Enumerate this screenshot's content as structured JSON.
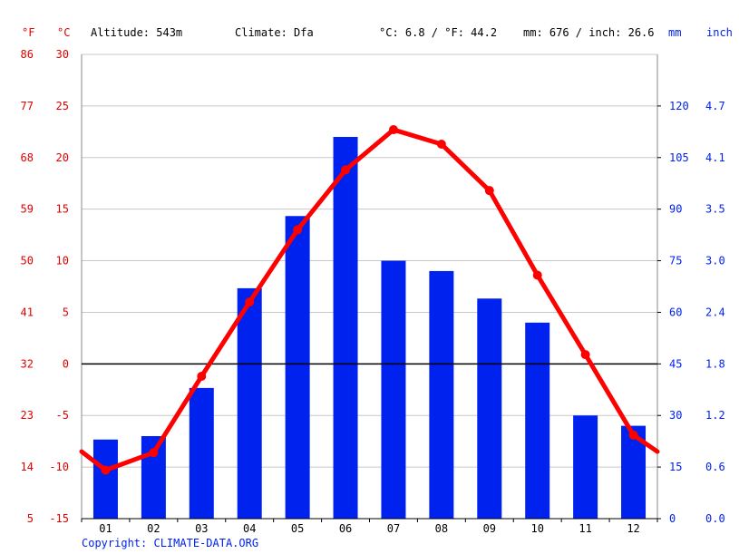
{
  "header": {
    "left_unit_f": "°F",
    "left_unit_c": "°C",
    "altitude": "Altitude: 543m",
    "climate": "Climate: Dfa",
    "temp_avg": "°C: 6.8 / °F: 44.2",
    "precip_total": "mm: 676 / inch: 26.6",
    "right_unit_mm": "mm",
    "right_unit_inch": "inch"
  },
  "copyright": "Copyright: CLIMATE-DATA.ORG",
  "colors": {
    "temperature": "#ff0000",
    "precipitation": "#0022ee",
    "grid": "#c8c8c8",
    "axis_left_text": "#e00000",
    "axis_right_text": "#0022ee"
  },
  "chart_data": {
    "type": "bar",
    "categories": [
      "01",
      "02",
      "03",
      "04",
      "05",
      "06",
      "07",
      "08",
      "09",
      "10",
      "11",
      "12"
    ],
    "series": [
      {
        "type": "bar",
        "axis": "right",
        "values": [
          23,
          24,
          38,
          67,
          88,
          111,
          75,
          72,
          64,
          57,
          30,
          27
        ]
      },
      {
        "type": "line",
        "axis": "left",
        "values": [
          -10.3,
          -8.6,
          -1.2,
          6.0,
          13.0,
          18.8,
          22.7,
          21.3,
          16.8,
          8.6,
          0.9,
          -6.9
        ]
      }
    ],
    "temp_line_edges": {
      "start": -8.5,
      "end": -8.5
    },
    "left_axis_c": {
      "ticks": [
        30,
        25,
        20,
        15,
        10,
        5,
        0,
        -5,
        -10,
        -15
      ],
      "ylim": [
        -15,
        30
      ]
    },
    "left_axis_f": {
      "ticks": [
        "86",
        "77",
        "68",
        "59",
        "50",
        "41",
        "32",
        "23",
        "14",
        "5"
      ]
    },
    "right_axis_mm": {
      "ticks": [
        "120",
        "105",
        "90",
        "75",
        "60",
        "45",
        "30",
        "15",
        "0"
      ],
      "ylim": [
        0,
        135
      ]
    },
    "right_axis_inch": {
      "ticks": [
        "4.7",
        "4.1",
        "3.5",
        "3.0",
        "2.4",
        "1.8",
        "1.2",
        "0.6",
        "0.0"
      ]
    },
    "grid": true
  }
}
